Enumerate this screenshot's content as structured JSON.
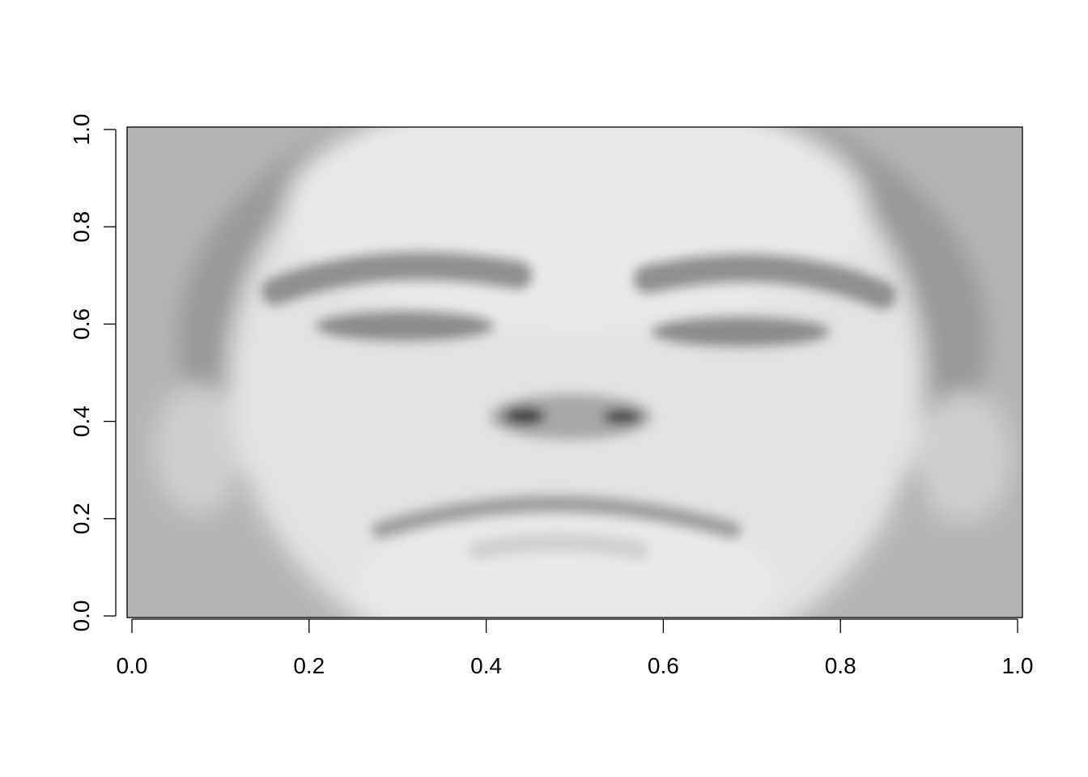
{
  "chart_data": {
    "type": "heatmap",
    "content": "grayscale face image",
    "title": "",
    "xlabel": "",
    "ylabel": "",
    "xlim": [
      0.0,
      1.0
    ],
    "ylim": [
      0.0,
      1.0
    ],
    "x_ticks": [
      "0.0",
      "0.2",
      "0.4",
      "0.6",
      "0.8",
      "1.0"
    ],
    "y_ticks": [
      "0.0",
      "0.2",
      "0.4",
      "0.6",
      "0.8",
      "1.0"
    ],
    "x_tick_values": [
      0.0,
      0.2,
      0.4,
      0.6,
      0.8,
      1.0
    ],
    "y_tick_values": [
      0.0,
      0.2,
      0.4,
      0.6,
      0.8,
      1.0
    ],
    "grid": false,
    "legend": "none",
    "colors": {
      "background": "#b4b4b4",
      "hair": "#9a9a9a",
      "skin": "#e2e2e2",
      "forehead": "#e8e8e8",
      "brow": "#8e8e8e",
      "eye": "#8a8a8a",
      "nostril": "#3a3a3a",
      "mouth": "#9c9c9c",
      "ear": "#cfcfcf"
    }
  }
}
